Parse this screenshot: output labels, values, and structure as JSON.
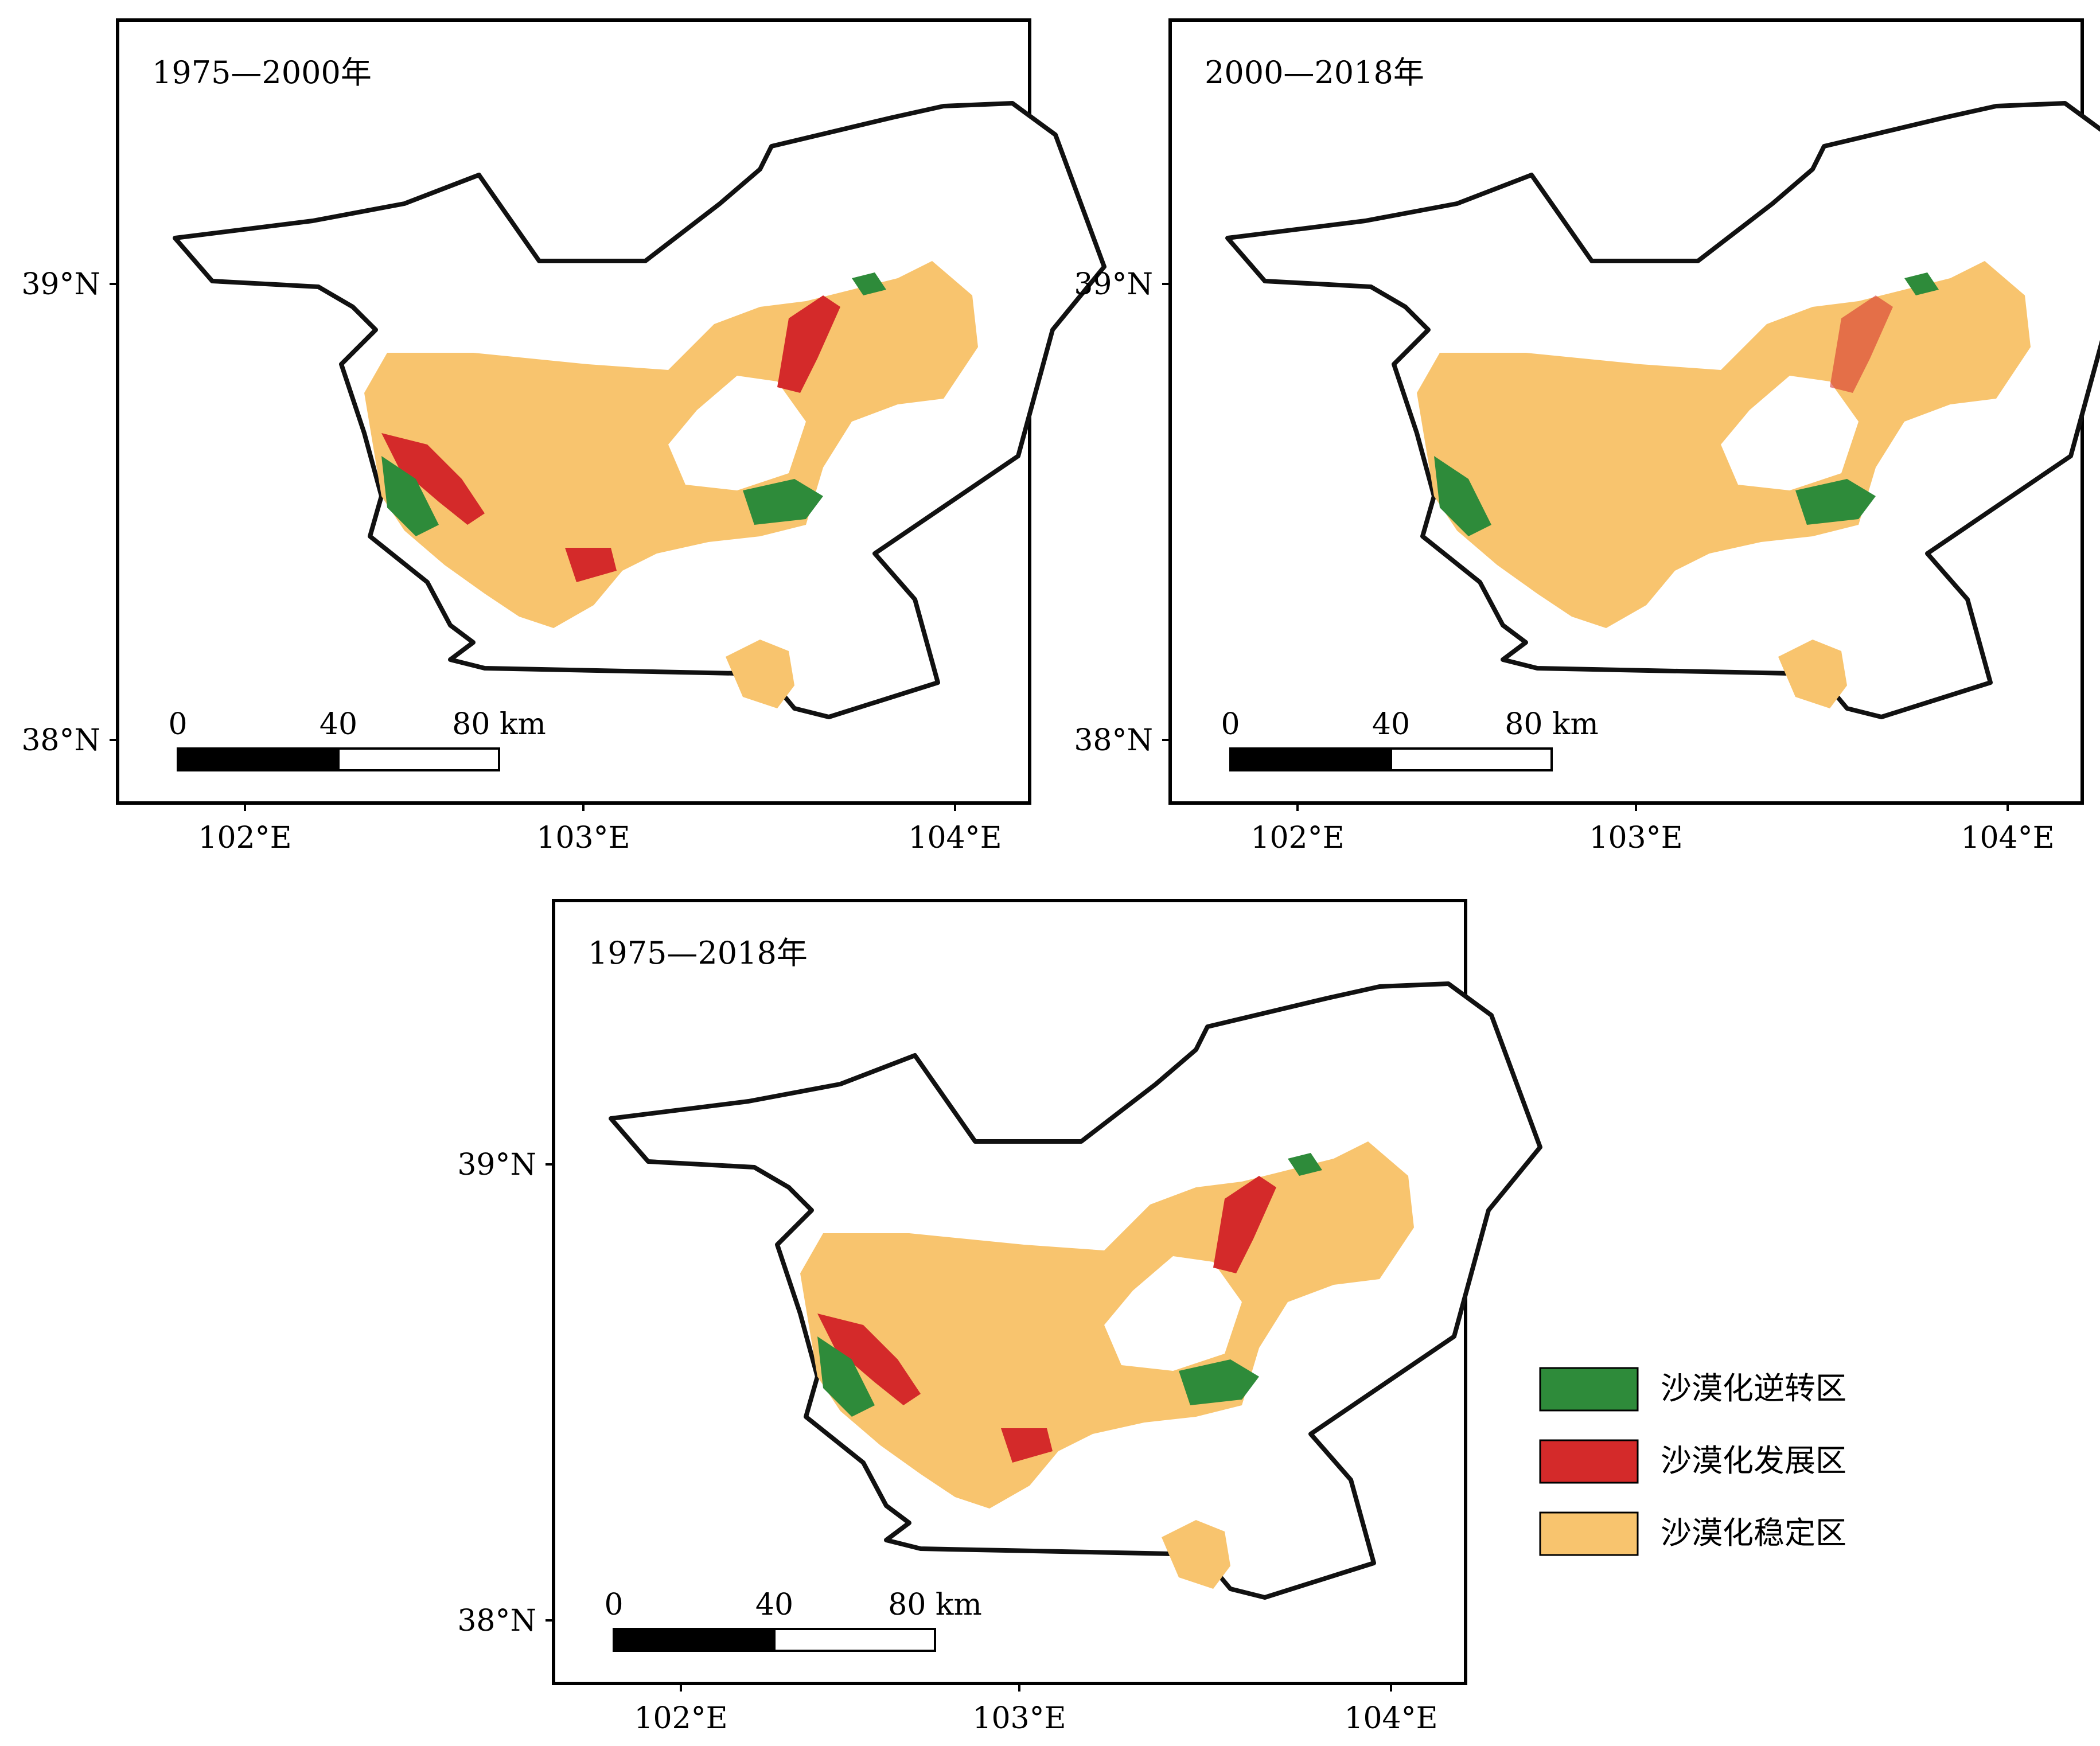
{
  "panels": [
    {
      "id": "p1",
      "period": "1975—2000年",
      "lat_labels": [
        "39°N",
        "38°N"
      ],
      "lon_labels": [
        "102°E",
        "103°E",
        "104°E"
      ],
      "scale_bar": {
        "ticks": [
          "0",
          "40",
          "80 km"
        ]
      }
    },
    {
      "id": "p2",
      "period": "2000—2018年",
      "lat_labels": [
        "39°N",
        "38°N"
      ],
      "lon_labels": [
        "102°E",
        "103°E",
        "104°E"
      ],
      "scale_bar": {
        "ticks": [
          "0",
          "40",
          "80 km"
        ]
      }
    },
    {
      "id": "p3",
      "period": "1975—2018年",
      "lat_labels": [
        "39°N",
        "38°N"
      ],
      "lon_labels": [
        "102°E",
        "103°E",
        "104°E"
      ],
      "scale_bar": {
        "ticks": [
          "0",
          "40",
          "80 km"
        ]
      }
    }
  ],
  "legend": [
    {
      "label": "沙漠化逆转区",
      "color": "#2e8b3a"
    },
    {
      "label": "沙漠化发展区",
      "color": "#d42a2a"
    },
    {
      "label": "沙漠化稳定区",
      "color": "#f8c46e"
    }
  ],
  "colors": {
    "reversal": "#2e8b3a",
    "development": "#d42a2a",
    "stable": "#f8c46e",
    "boundary": "#111111"
  }
}
